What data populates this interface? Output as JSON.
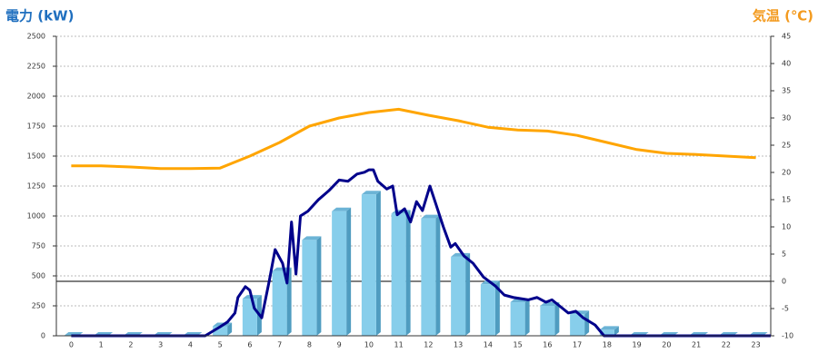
{
  "chart_data": {
    "type": "bar",
    "ylabel": "電力 (kW)",
    "y2label": "気温 (℃)",
    "categories": [
      "0",
      "1",
      "2",
      "3",
      "4",
      "5",
      "6",
      "7",
      "8",
      "9",
      "10",
      "11",
      "12",
      "13",
      "14",
      "15",
      "16",
      "17",
      "18",
      "19",
      "20",
      "21",
      "22",
      "23"
    ],
    "ylim": [
      0,
      2500
    ],
    "yticks": [
      0,
      250,
      500,
      750,
      1000,
      1250,
      1500,
      1750,
      2000,
      2250,
      2500
    ],
    "y2lim": [
      -10,
      45
    ],
    "y2ticks": [
      -10,
      -5,
      0,
      5,
      10,
      15,
      20,
      25,
      30,
      35,
      40,
      45
    ],
    "grid": true,
    "series": [
      {
        "type": "bar",
        "color": "#87ceeb",
        "values": [
          0,
          0,
          0,
          0,
          0,
          80,
          310,
          540,
          800,
          1040,
          1180,
          1020,
          980,
          660,
          430,
          280,
          250,
          180,
          50,
          0,
          0,
          0,
          0,
          0
        ]
      },
      {
        "type": "line",
        "color": "#00008b",
        "x": [
          0,
          4.5,
          5,
          5.25,
          5.5,
          5.6,
          5.85,
          6,
          6.15,
          6.4,
          6.65,
          6.85,
          7.1,
          7.25,
          7.4,
          7.55,
          7.7,
          7.95,
          8.3,
          8.65,
          9,
          9.3,
          9.6,
          9.85,
          10,
          10.15,
          10.3,
          10.6,
          10.8,
          10.95,
          11.2,
          11.4,
          11.6,
          11.8,
          12.05,
          12.25,
          12.5,
          12.75,
          12.9,
          13.2,
          13.5,
          13.85,
          14.25,
          14.55,
          14.85,
          15.35,
          15.65,
          15.95,
          16.15,
          16.4,
          16.7,
          16.95,
          17.2,
          17.6,
          17.9,
          23.5
        ],
        "values": [
          0,
          0,
          75,
          115,
          190,
          320,
          410,
          380,
          230,
          150,
          455,
          720,
          605,
          440,
          950,
          515,
          1000,
          1040,
          1135,
          1210,
          1300,
          1290,
          1350,
          1365,
          1385,
          1385,
          1290,
          1225,
          1250,
          1010,
          1060,
          950,
          1120,
          1045,
          1250,
          1100,
          910,
          740,
          770,
          665,
          605,
          490,
          415,
          340,
          320,
          300,
          320,
          280,
          300,
          250,
          190,
          205,
          150,
          90,
          0,
          0
        ]
      },
      {
        "type": "line",
        "axis": "y2",
        "color": "#ffa500",
        "values": [
          21.2,
          21.2,
          21,
          20.7,
          20.7,
          20.8,
          23,
          25.5,
          28.5,
          30,
          31,
          31.6,
          30.5,
          29.5,
          28.3,
          27.8,
          27.6,
          26.8,
          25.5,
          24.2,
          23.5,
          23.3,
          23,
          22.7
        ]
      }
    ]
  }
}
